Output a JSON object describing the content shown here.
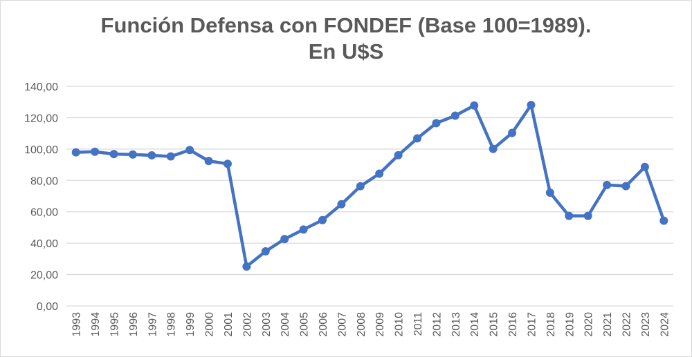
{
  "chart_data": {
    "type": "line",
    "title_line1": "Función Defensa con FONDEF (Base 100=1989).",
    "title_line2": "En U$S",
    "categories": [
      "1993",
      "1994",
      "1995",
      "1996",
      "1997",
      "1998",
      "1999",
      "2000",
      "2001",
      "2002",
      "2003",
      "2004",
      "2005",
      "2006",
      "2007",
      "2008",
      "2009",
      "2010",
      "2011",
      "2012",
      "2013",
      "2014",
      "2015",
      "2016",
      "2017",
      "2018",
      "2019",
      "2020",
      "2021",
      "2022",
      "2023",
      "2024"
    ],
    "series": [
      {
        "values": [
          97.9,
          98.3,
          96.8,
          96.5,
          96.0,
          95.3,
          99.4,
          92.4,
          90.6,
          25.1,
          34.8,
          42.6,
          48.7,
          54.7,
          64.8,
          76.3,
          84.3,
          96.1,
          106.8,
          116.5,
          121.3,
          127.8,
          100.1,
          110.3,
          128.1,
          72.2,
          57.4,
          57.4,
          77.1,
          76.4,
          88.6,
          54.3
        ],
        "color": "#4472c4"
      }
    ],
    "ylim": [
      0,
      140
    ],
    "yticks": [
      "0,00",
      "20,00",
      "40,00",
      "60,00",
      "80,00",
      "100,00",
      "120,00",
      "140,00"
    ],
    "grid": true,
    "legend": "none"
  }
}
